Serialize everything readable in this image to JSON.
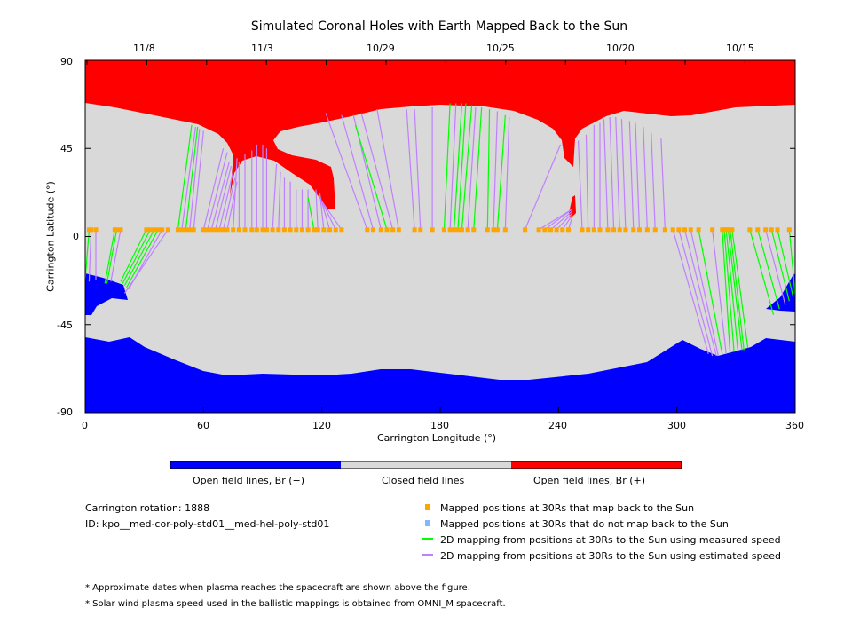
{
  "chart_data": {
    "type": "map",
    "title": "Simulated Coronal Holes with Earth Mapped Back to the Sun",
    "xlabel": "Carrington Longitude (°)",
    "ylabel": "Carrington Latitude (°)",
    "xlim": [
      0,
      360
    ],
    "ylim": [
      -90,
      90
    ],
    "x_ticks": [
      "0",
      "60",
      "120",
      "180",
      "240",
      "300",
      "360"
    ],
    "y_ticks": [
      "90",
      "45",
      "0",
      "-45",
      "-90"
    ],
    "top_date_ticks": [
      "11/8",
      "11/3",
      "10/29",
      "10/25",
      "10/20",
      "10/15"
    ],
    "colorbar_labels": [
      "Open field lines, Br (−)",
      "Closed field lines",
      "Open field lines, Br (+)"
    ],
    "colors": {
      "negative": "#0000ff",
      "closed": "#d9d9d9",
      "positive": "#ff0000",
      "mapped": "#ffa500",
      "not_mapped": "#80b8ff",
      "measured": "#00ff00",
      "estimated": "#bf80ff"
    },
    "mapping_lat_30rs": 3.5,
    "mappings_note": "each entry: [lon at 30Rs, lon at Sun, lat at Sun, speed type m=measured e=estimated]",
    "mappings": [
      [
        2,
        0,
        -22,
        "m"
      ],
      [
        3,
        2,
        -23,
        "e"
      ],
      [
        5.4,
        5.4,
        -22,
        "e"
      ],
      [
        15,
        10,
        -24,
        "m"
      ],
      [
        16,
        11,
        -24,
        "m"
      ],
      [
        18,
        13,
        -23,
        "e"
      ],
      [
        31,
        18,
        -23,
        "m"
      ],
      [
        33,
        19,
        -24,
        "m"
      ],
      [
        35,
        20,
        -25,
        "m"
      ],
      [
        37,
        21,
        -26,
        "m"
      ],
      [
        39,
        22,
        -27,
        "e"
      ],
      [
        42,
        20,
        -29,
        "e"
      ],
      [
        47,
        54,
        57,
        "m"
      ],
      [
        49,
        56,
        56,
        "e"
      ],
      [
        51,
        57,
        56,
        "m"
      ],
      [
        53,
        58,
        55,
        "e"
      ],
      [
        55,
        60,
        54,
        "e"
      ],
      [
        60,
        70,
        45,
        "e"
      ],
      [
        62,
        72,
        43,
        "e"
      ],
      [
        64,
        73,
        38,
        "e"
      ],
      [
        66,
        74,
        36,
        "e"
      ],
      [
        68,
        75,
        33,
        "e"
      ],
      [
        70,
        76,
        30,
        "e"
      ],
      [
        72,
        77,
        28,
        "e"
      ],
      [
        75,
        77,
        40,
        "e"
      ],
      [
        78,
        78,
        38,
        "e"
      ],
      [
        81,
        81,
        42,
        "e"
      ],
      [
        84.5,
        84.5,
        44,
        "e"
      ],
      [
        87,
        87,
        47,
        "e"
      ],
      [
        90,
        90,
        47,
        "e"
      ],
      [
        92,
        92,
        45,
        "e"
      ],
      [
        95,
        97,
        37,
        "e"
      ],
      [
        98,
        99,
        33,
        "e"
      ],
      [
        101,
        101,
        30,
        "e"
      ],
      [
        104,
        104,
        28,
        "e"
      ],
      [
        107,
        107,
        24,
        "e"
      ],
      [
        110,
        110,
        24,
        "e"
      ],
      [
        113,
        113,
        24,
        "e"
      ],
      [
        116,
        113,
        20,
        "m"
      ],
      [
        118,
        117,
        24,
        "e"
      ],
      [
        121,
        119,
        22,
        "e"
      ],
      [
        124,
        119,
        21,
        "e"
      ],
      [
        127,
        119,
        20,
        "e"
      ],
      [
        130,
        120,
        18,
        "e"
      ],
      [
        143,
        122,
        63,
        "e"
      ],
      [
        146,
        130,
        62,
        "e"
      ],
      [
        150,
        136,
        62,
        "e"
      ],
      [
        153,
        137,
        57,
        "m"
      ],
      [
        156,
        140,
        63,
        "e"
      ],
      [
        159,
        148,
        65,
        "e"
      ],
      [
        167,
        163,
        65,
        "e"
      ],
      [
        170,
        167,
        65,
        "e"
      ],
      [
        176,
        176,
        66,
        "e"
      ],
      [
        182,
        185,
        68,
        "m"
      ],
      [
        185,
        188,
        68,
        "e"
      ],
      [
        187,
        191,
        68,
        "m"
      ],
      [
        189,
        193,
        68,
        "m"
      ],
      [
        191,
        196,
        67,
        "m"
      ],
      [
        194,
        198,
        66,
        "e"
      ],
      [
        197,
        201,
        66,
        "m"
      ],
      [
        204,
        205,
        65,
        "m"
      ],
      [
        207,
        209,
        64,
        "e"
      ],
      [
        209,
        213,
        62,
        "m"
      ],
      [
        213,
        215,
        61,
        "e"
      ],
      [
        223,
        241,
        47,
        "e"
      ],
      [
        230,
        247,
        14,
        "e"
      ],
      [
        233,
        247,
        14,
        "e"
      ],
      [
        236,
        247,
        13,
        "e"
      ],
      [
        239,
        247,
        12,
        "e"
      ],
      [
        242,
        247,
        11,
        "e"
      ],
      [
        245,
        247,
        10,
        "e"
      ],
      [
        252,
        250,
        49,
        "e"
      ],
      [
        255,
        254,
        52,
        "e"
      ],
      [
        258,
        258,
        57,
        "e"
      ],
      [
        261,
        261,
        58,
        "e"
      ],
      [
        265,
        263,
        60,
        "e"
      ],
      [
        268,
        266,
        61,
        "e"
      ],
      [
        271,
        269,
        61,
        "e"
      ],
      [
        274,
        272,
        60,
        "e"
      ],
      [
        278,
        276,
        59,
        "e"
      ],
      [
        281,
        279,
        58,
        "e"
      ],
      [
        285,
        283,
        56,
        "e"
      ],
      [
        289,
        287,
        53,
        "e"
      ],
      [
        294,
        292,
        50,
        "e"
      ],
      [
        298,
        316,
        -60,
        "e"
      ],
      [
        301,
        318,
        -61,
        "e"
      ],
      [
        304,
        320,
        -61,
        "e"
      ],
      [
        307,
        321,
        -61,
        "e"
      ],
      [
        311,
        323,
        -60,
        "m"
      ],
      [
        318,
        325,
        -60,
        "e"
      ],
      [
        323,
        327,
        -60,
        "m"
      ],
      [
        324,
        329,
        -59,
        "m"
      ],
      [
        325,
        331,
        -59,
        "m"
      ],
      [
        326,
        333,
        -58,
        "m"
      ],
      [
        327,
        334,
        -58,
        "m"
      ],
      [
        328,
        336,
        -57,
        "m"
      ],
      [
        337,
        349,
        -40,
        "m"
      ],
      [
        341,
        352,
        -37,
        "m"
      ],
      [
        345,
        355,
        -35,
        "e"
      ],
      [
        348,
        357,
        -33,
        "m"
      ],
      [
        351,
        359,
        -31,
        "m"
      ],
      [
        357,
        360,
        -30,
        "m"
      ]
    ]
  },
  "info": {
    "rotation": "Carrington rotation: 1888",
    "id": "ID: kpo__med-cor-poly-std01__med-hel-poly-std01"
  },
  "legend": [
    "Mapped positions at 30Rs that map back to the Sun",
    "Mapped positions at 30Rs that do not map back to the Sun",
    "2D mapping from positions at 30Rs to the Sun using measured speed",
    "2D mapping from positions at 30Rs to the Sun using estimated speed"
  ],
  "notes": [
    "* Approximate dates when plasma reaches the spacecraft are shown above the figure.",
    "* Solar wind plasma speed used in the ballistic mappings is obtained from OMNI_M spacecraft."
  ]
}
